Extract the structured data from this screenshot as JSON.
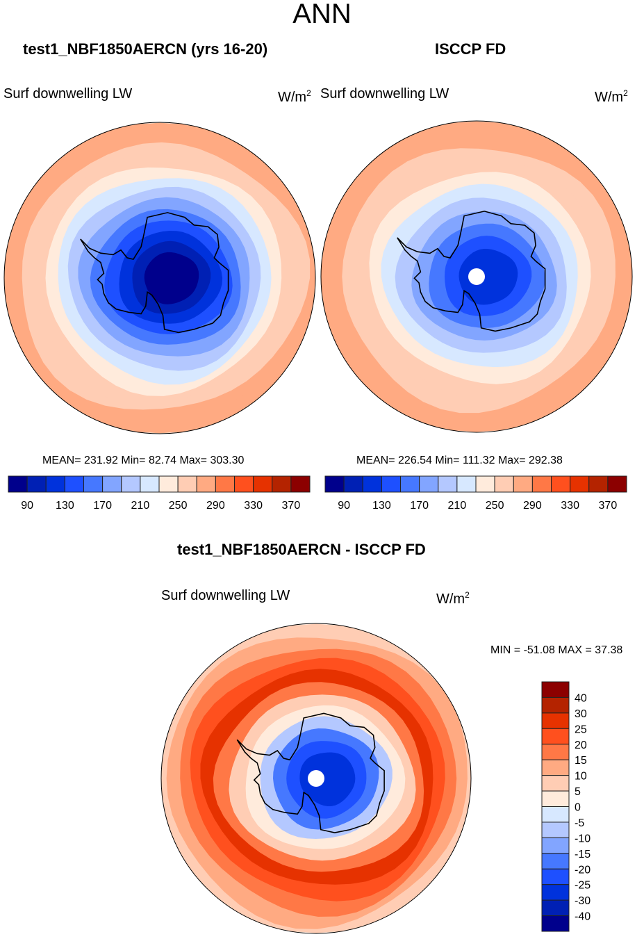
{
  "figure": {
    "title": "ANN"
  },
  "chart_data": [
    {
      "type": "heatmap",
      "projection": "south-polar-stereographic",
      "title": "test1_NBF1850AERCN (yrs 16-20)",
      "variable_label": "Surf downwelling LW",
      "units_base": "W/m",
      "units_sup": "2",
      "stats": {
        "mean": 231.92,
        "min": 82.74,
        "max": 303.3
      },
      "stats_text": "MEAN= 231.92  Min=  82.74  Max= 303.30",
      "levels": [
        80,
        100,
        120,
        140,
        160,
        180,
        200,
        220,
        240,
        260,
        280,
        300,
        320,
        340,
        360,
        380
      ],
      "tick_labels": [
        "90",
        "130",
        "170",
        "210",
        "250",
        "290",
        "330",
        "370"
      ],
      "colorbar_orientation": "horizontal",
      "rings_outer_to_inner": [
        10,
        10,
        9,
        9,
        8,
        7,
        6,
        5,
        4,
        3,
        2,
        1,
        0
      ],
      "pole_hole": false
    },
    {
      "type": "heatmap",
      "projection": "south-polar-stereographic",
      "title": "ISCCP FD",
      "variable_label": "Surf downwelling LW",
      "units_base": "W/m",
      "units_sup": "2",
      "stats": {
        "mean": 226.54,
        "min": 111.32,
        "max": 292.38
      },
      "stats_text": "MEAN= 226.54  Min= 111.32  Max= 292.38",
      "levels": [
        80,
        100,
        120,
        140,
        160,
        180,
        200,
        220,
        240,
        260,
        280,
        300,
        320,
        340,
        360,
        380
      ],
      "tick_labels": [
        "90",
        "130",
        "170",
        "210",
        "250",
        "290",
        "330",
        "370"
      ],
      "colorbar_orientation": "horizontal",
      "rings_outer_to_inner": [
        10,
        10,
        9,
        9,
        8,
        7,
        6,
        5,
        4,
        3,
        2
      ],
      "pole_hole": true
    },
    {
      "type": "heatmap",
      "projection": "south-polar-stereographic",
      "title": "test1_NBF1850AERCN - ISCCP FD",
      "variable_label": "Surf downwelling LW",
      "units_base": "W/m",
      "units_sup": "2",
      "stats": {
        "min": -51.08,
        "max": 37.38
      },
      "stats_text": "MIN = -51.08 MAX =  37.38",
      "levels": [
        -40,
        -30,
        -25,
        -20,
        -15,
        -10,
        -5,
        0,
        5,
        10,
        15,
        20,
        25,
        30,
        40
      ],
      "tick_labels": [
        "40",
        "30",
        "25",
        "20",
        "15",
        "10",
        "5",
        "0",
        "-5",
        "-10",
        "-15",
        "-20",
        "-25",
        "-30",
        "-40"
      ],
      "colorbar_orientation": "vertical",
      "rings_outer_to_inner": [
        9,
        10,
        11,
        12,
        13,
        11,
        9,
        8,
        6,
        4,
        3,
        2
      ],
      "pole_hole": true
    }
  ],
  "palette": [
    "#00008c",
    "#0020b4",
    "#0032dc",
    "#1e50ff",
    "#4678ff",
    "#82a5ff",
    "#b4c8ff",
    "#d7e8ff",
    "#ffebdc",
    "#ffcdb4",
    "#ffaa82",
    "#ff7846",
    "#ff501e",
    "#e63200",
    "#b42300",
    "#8c0000"
  ],
  "colors": {
    "coastline": "#000000",
    "map_border": "#000000",
    "missing_data": "#ffffff"
  }
}
